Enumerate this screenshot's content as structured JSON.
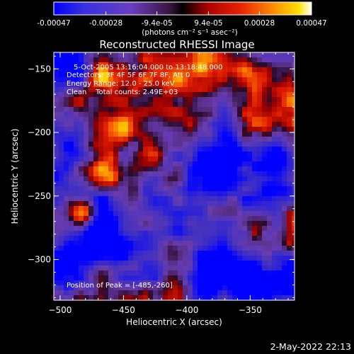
{
  "colorbar": {
    "tick_labels": [
      "-0.00047",
      "-0.00028",
      "-9.4e-05",
      "9.4e-05",
      "0.00028",
      "0.00047"
    ],
    "tick_values": [
      -0.00047,
      -0.00028,
      -9.4e-05,
      9.4e-05,
      0.00028,
      0.00047
    ],
    "range": [
      -0.00047,
      0.00047
    ],
    "unit_label": "(photons cm⁻² s⁻¹ asec⁻²)"
  },
  "annotations": {
    "time": "5-Oct-2005 13:16:04.000 to 13:18:48.000",
    "detectors": "Detectors: 3F 4F 5F 6F 7F 8F, Att 0",
    "energy": "Energy Range: 12.0 - 25.0 keV",
    "clean": "Clean    Total counts: 2.49E+03",
    "peak": "Position of Peak = [-485,-260]"
  },
  "footer": {
    "date": "2-May-2022 22:13"
  },
  "chart_data": {
    "type": "heatmap",
    "title": "Reconstructed RHESSI Image",
    "xlabel": "Heliocentric X (arcsec)",
    "ylabel": "Heliocentric Y (arcsec)",
    "xlim": [
      -505,
      -315
    ],
    "ylim": [
      -332,
      -137
    ],
    "xticks": [
      -500,
      -450,
      -400,
      -350
    ],
    "xtick_labels": [
      "−500",
      "−450",
      "−400",
      "−350"
    ],
    "yticks": [
      -150,
      -200,
      -250,
      -300
    ],
    "ytick_labels": [
      "−150",
      "−200",
      "−250",
      "−300"
    ],
    "zlim": [
      -0.00047,
      0.00047
    ],
    "peak": {
      "x": -485,
      "y": -260
    },
    "colormap_stops": [
      "#0000ff",
      "#3a30e0",
      "#6a3ec0",
      "#7a4ab0",
      "#3a1440",
      "#b00000",
      "#e52000",
      "#ff7a00",
      "#ffd200",
      "#ffffff"
    ]
  }
}
